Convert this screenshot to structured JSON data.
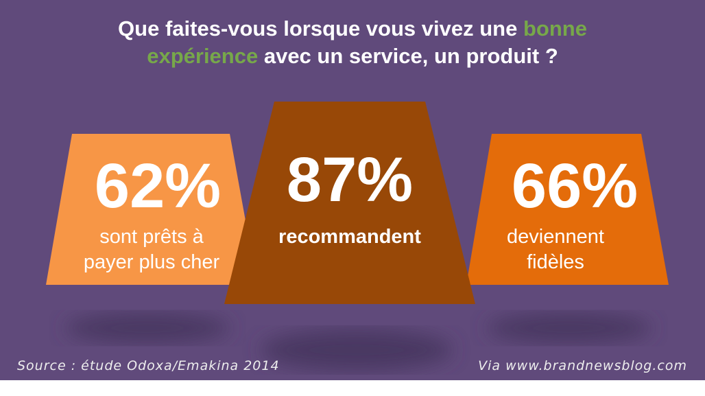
{
  "title": {
    "part1": "Que faites-vous lorsque vous vivez une ",
    "highlight1": "bonne",
    "highlight2": "expérience",
    "part2": " avec un service, un produit ?"
  },
  "stats": [
    {
      "value": "62%",
      "label_line1": "sont prêts à",
      "label_line2": "payer plus cher",
      "color": "#f79646"
    },
    {
      "value": "87%",
      "label_line1": "recommandent",
      "label_line2": "",
      "color": "#984807"
    },
    {
      "value": "66%",
      "label_line1": "deviennent",
      "label_line2": "fidèles",
      "color": "#e46c0a"
    }
  ],
  "footer": {
    "source": "Source :  étude Odoxa/Emakina 2014",
    "via": "Via www.brandnewsblog.com"
  },
  "colors": {
    "background": "#604a7b",
    "accent": "#77a84a"
  }
}
